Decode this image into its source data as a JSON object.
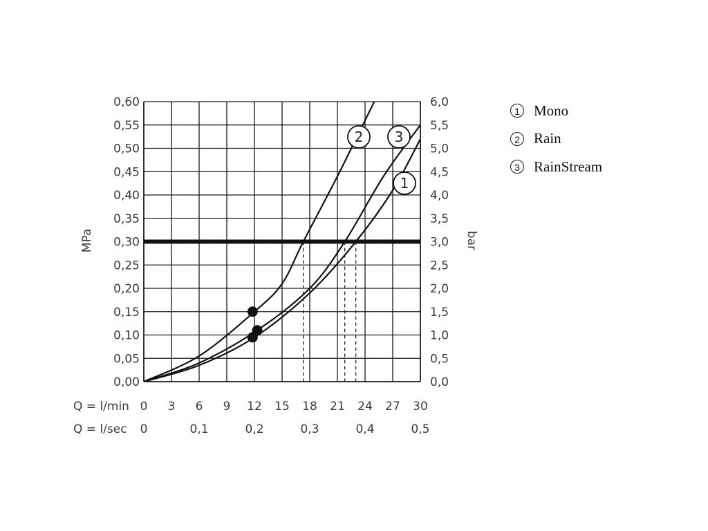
{
  "chart_data": {
    "type": "line",
    "ylabel_left": "MPa",
    "ylabel_right": "bar",
    "xlabel_min_prefix": "Q = l/min",
    "xlabel_sec_prefix": "Q = l/sec",
    "xlim": [
      0,
      30
    ],
    "ylim": [
      0,
      0.6
    ],
    "grid": true,
    "x_ticks_min": [
      "0",
      "3",
      "6",
      "9",
      "12",
      "15",
      "18",
      "21",
      "24",
      "27",
      "30"
    ],
    "x_ticks_sec": [
      {
        "x": 0,
        "label": "0"
      },
      {
        "x": 6,
        "label": "0,1"
      },
      {
        "x": 12,
        "label": "0,2"
      },
      {
        "x": 18,
        "label": "0,3"
      },
      {
        "x": 24,
        "label": "0,4"
      },
      {
        "x": 30,
        "label": "0,5"
      }
    ],
    "y_ticks_left": [
      "0,00",
      "0,05",
      "0,10",
      "0,15",
      "0,20",
      "0,25",
      "0,30",
      "0,35",
      "0,40",
      "0,45",
      "0,50",
      "0,55",
      "0,60"
    ],
    "y_ticks_right": [
      "0,0",
      "0,5",
      "1,0",
      "1,5",
      "2,0",
      "2,5",
      "3,0",
      "3,5",
      "4,0",
      "4,5",
      "5,0",
      "5,5",
      "6,0"
    ],
    "reference_line": {
      "y": 0.3
    },
    "series": [
      {
        "tag": "1",
        "name": "Mono",
        "x": [
          0,
          6,
          12,
          18,
          23,
          27,
          30
        ],
        "y": [
          0,
          0.035,
          0.095,
          0.19,
          0.3,
          0.41,
          0.52
        ],
        "marker": {
          "x": 11.8,
          "y": 0.095
        },
        "drop_x": 23.0
      },
      {
        "tag": "2",
        "name": "Rain",
        "x": [
          0,
          6,
          12,
          15,
          17.3,
          21,
          25
        ],
        "y": [
          0,
          0.055,
          0.15,
          0.21,
          0.3,
          0.44,
          0.6
        ],
        "marker": {
          "x": 11.8,
          "y": 0.15
        },
        "drop_x": 17.3
      },
      {
        "tag": "3",
        "name": "RainStream",
        "x": [
          0,
          6,
          12.3,
          18,
          21.8,
          26,
          30
        ],
        "y": [
          0,
          0.04,
          0.11,
          0.2,
          0.3,
          0.44,
          0.55
        ],
        "marker": {
          "x": 12.3,
          "y": 0.11
        },
        "drop_x": 21.8
      }
    ]
  },
  "legend": [
    {
      "num": "1",
      "label": "Mono"
    },
    {
      "num": "2",
      "label": "Rain"
    },
    {
      "num": "3",
      "label": "RainStream"
    }
  ]
}
